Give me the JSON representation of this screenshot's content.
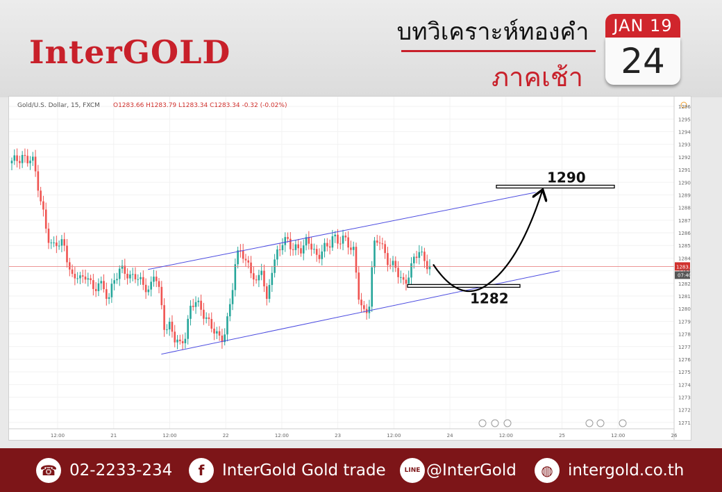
{
  "header": {
    "logo": "InterGOLD",
    "title": "บทวิเคราะห์ทองคำ",
    "subtitle": "ภาคเช้า",
    "calendar_month": "JAN 19",
    "calendar_day": "24"
  },
  "chart_info": {
    "symbol": "Gold/U.S. Dollar, 15, FXCM",
    "ohlc": "O1283.66  H1283.79  L1283.34  C1283.34  -0.32 (-0.02%)",
    "price_tag": "1283.34",
    "time_tag": "07:40"
  },
  "chart_data": {
    "type": "line",
    "instrument": "Gold/U.S. Dollar",
    "timeframe": "15",
    "ylim": [
      1270.5,
      1296.5
    ],
    "yticks": [
      1271,
      1272,
      1273,
      1274,
      1275,
      1276,
      1277,
      1278,
      1279,
      1280,
      1281,
      1282,
      1283,
      1284,
      1285,
      1286,
      1287,
      1288,
      1289,
      1290,
      1291,
      1292,
      1293,
      1294,
      1295,
      1296
    ],
    "xticks": [
      "12:00",
      "21",
      "12:00",
      "22",
      "12:00",
      "23",
      "12:00",
      "24",
      "12:00",
      "25",
      "12:00",
      "26"
    ],
    "price_series": [
      1291.5,
      1291.8,
      1292.2,
      1291.6,
      1291.8,
      1290.2,
      1288.0,
      1285.5,
      1284.8,
      1285.5,
      1285.2,
      1283.5,
      1282.3,
      1283.0,
      1282.0,
      1282.6,
      1281.5,
      1282.2,
      1281.3,
      1280.8,
      1282.5,
      1282.8,
      1283.0,
      1282.5,
      1282.9,
      1282.0,
      1281.8,
      1281.5,
      1283.0,
      1281.0,
      1278.5,
      1278.8,
      1277.5,
      1277.0,
      1278.0,
      1280.0,
      1280.5,
      1280.0,
      1279.6,
      1278.5,
      1278.0,
      1277.6,
      1278.5,
      1280.5,
      1284.0,
      1285.0,
      1283.5,
      1282.8,
      1282.0,
      1283.5,
      1280.2,
      1283.0,
      1284.5,
      1285.3,
      1285.2,
      1284.8,
      1285.0,
      1284.6,
      1285.3,
      1285.0,
      1284.0,
      1284.6,
      1284.8,
      1286.0,
      1285.2,
      1285.4,
      1285.2,
      1284.9,
      1281.0,
      1279.5,
      1280.0,
      1285.0,
      1285.4,
      1284.5,
      1283.8,
      1283.3,
      1282.5,
      1282.0,
      1283.0,
      1283.8,
      1284.6,
      1283.9,
      1283.3
    ],
    "levels": [
      {
        "label": "1290",
        "value": 1289.6
      },
      {
        "label": "1282",
        "value": 1281.8
      }
    ],
    "channel_upper": [
      [
        0.209,
        1283.1
      ],
      [
        0.792,
        1289.2
      ]
    ],
    "channel_lower": [
      [
        0.229,
        1276.4
      ],
      [
        0.828,
        1283.0
      ]
    ],
    "projection": "down to 1282 then up to 1290",
    "current_price": 1283.34
  },
  "footer": {
    "phone": "02-2233-234",
    "facebook": "InterGold Gold trade",
    "line": "@InterGold",
    "website": "intergold.co.th",
    "line_icon_text": "LINE"
  },
  "colors": {
    "brand_red": "#c8202a",
    "footer_bg": "#7d1518",
    "candle_up": "#26a69a",
    "candle_down": "#ef5350",
    "channel": "#4a4ae0"
  }
}
